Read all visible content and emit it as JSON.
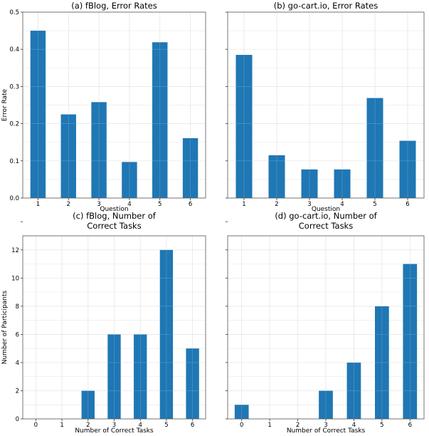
{
  "chart_data": [
    {
      "type": "bar",
      "title": "(a) fBlog, Error Rates",
      "categories": [
        "1",
        "2",
        "3",
        "4",
        "5",
        "6"
      ],
      "values": [
        0.45,
        0.225,
        0.258,
        0.097,
        0.419,
        0.161
      ],
      "xlabel": "Question",
      "ylabel": "Error Rate",
      "ylim": [
        0,
        0.5
      ],
      "yticks": [
        "0.0",
        "0.1",
        "0.2",
        "0.3",
        "0.4",
        "0.5"
      ],
      "grid": true,
      "color": "#1f77b4"
    },
    {
      "type": "bar",
      "title": "(b) go-cart.io, Error Rates",
      "categories": [
        "1",
        "2",
        "3",
        "4",
        "5",
        "6"
      ],
      "values": [
        0.385,
        0.115,
        0.077,
        0.077,
        0.269,
        0.154
      ],
      "xlabel": "Question",
      "ylabel": "",
      "ylim": [
        0,
        0.5
      ],
      "yticks": [],
      "grid": true,
      "color": "#1f77b4"
    },
    {
      "type": "bar",
      "title_lines": [
        "(c) fBlog, Number of",
        "Correct Tasks"
      ],
      "categories": [
        "0",
        "1",
        "2",
        "3",
        "4",
        "5",
        "6"
      ],
      "values": [
        0,
        0,
        2,
        6,
        6,
        12,
        5
      ],
      "xlabel": "Number of Correct Tasks",
      "ylabel": "Number of Participants",
      "ylim": [
        0,
        13
      ],
      "yticks": [
        "0",
        "2",
        "4",
        "6",
        "8",
        "10",
        "12"
      ],
      "grid": true,
      "color": "#1f77b4"
    },
    {
      "type": "bar",
      "title_lines": [
        "(d) go-cart.io, Number of",
        "Correct Tasks"
      ],
      "categories": [
        "0",
        "1",
        "2",
        "3",
        "4",
        "5",
        "6"
      ],
      "values": [
        1,
        0,
        0,
        2,
        4,
        8,
        11
      ],
      "xlabel": "Number of Correct Tasks",
      "ylabel": "",
      "ylim": [
        0,
        13
      ],
      "yticks": [],
      "grid": true,
      "color": "#1f77b4"
    }
  ]
}
